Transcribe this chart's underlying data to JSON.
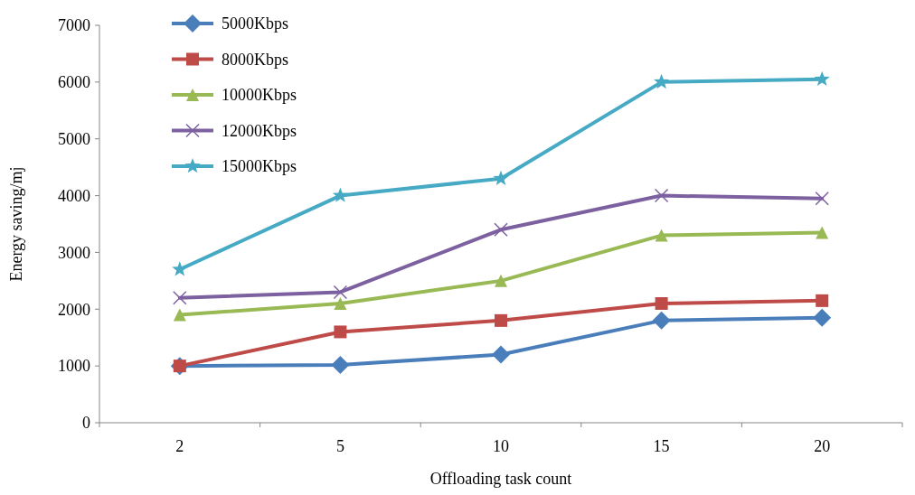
{
  "chart_data": {
    "type": "line",
    "xlabel": "Offloading task count",
    "ylabel": "Energy saving/mj",
    "categories": [
      "2",
      "5",
      "10",
      "15",
      "20"
    ],
    "ylim": [
      0,
      7000
    ],
    "yticks": [
      0,
      1000,
      2000,
      3000,
      4000,
      5000,
      6000,
      7000
    ],
    "grid": false,
    "legend": "top left",
    "line_style": "solid",
    "series": [
      {
        "name": "5000Kbps",
        "color": "#4a7ebb",
        "marker": "diamond",
        "values": [
          1000,
          1020,
          1200,
          1800,
          1850
        ]
      },
      {
        "name": "8000Kbps",
        "color": "#be4b48",
        "marker": "square",
        "values": [
          1000,
          1600,
          1800,
          2100,
          2150
        ]
      },
      {
        "name": "10000Kbps",
        "color": "#98b954",
        "marker": "triangle",
        "values": [
          1900,
          2100,
          2500,
          3300,
          3350
        ]
      },
      {
        "name": "12000Kbps",
        "color": "#7d60a0",
        "marker": "cross",
        "values": [
          2200,
          2300,
          3400,
          4000,
          3950
        ]
      },
      {
        "name": "15000Kbps",
        "color": "#46aac5",
        "marker": "star",
        "values": [
          2700,
          4000,
          4300,
          6000,
          6050
        ]
      }
    ]
  }
}
